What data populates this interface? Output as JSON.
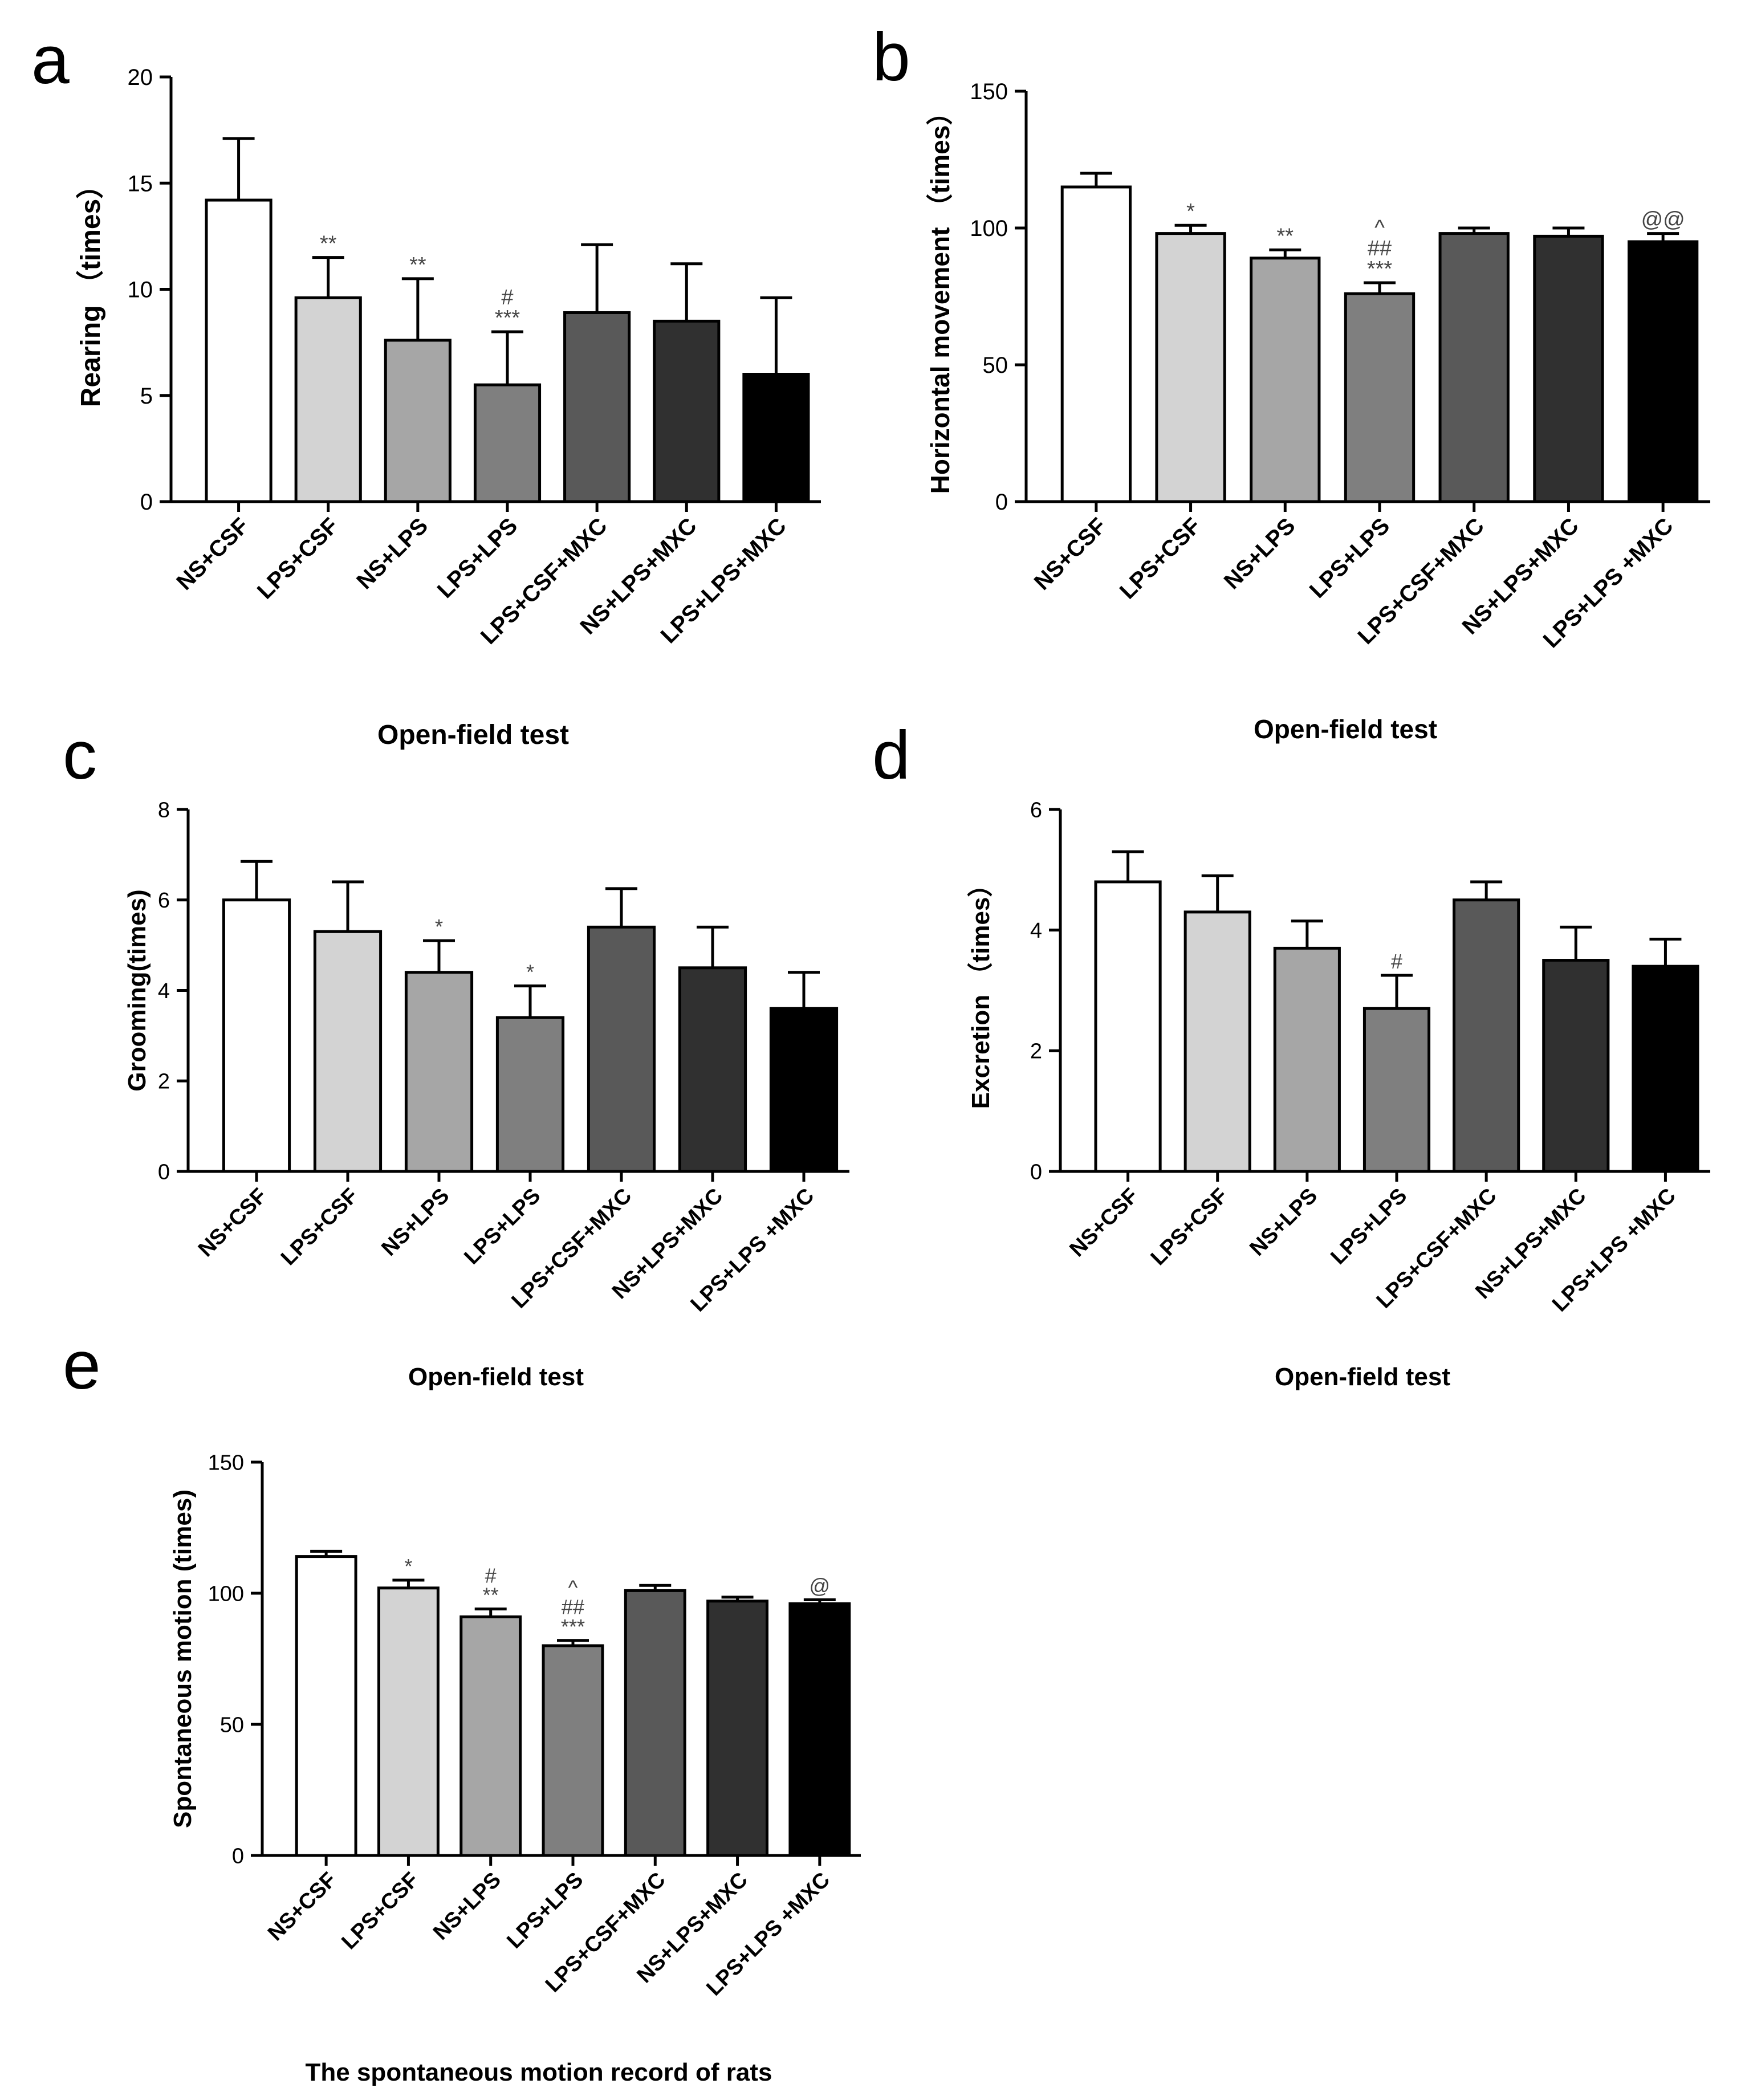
{
  "figure": {
    "bar_colors": [
      "#ffffff",
      "#d3d3d3",
      "#a6a6a6",
      "#7f7f7f",
      "#595959",
      "#303030",
      "#000000"
    ],
    "axis_color": "#000000",
    "annotation_color": "#444444"
  },
  "chart_data": [
    {
      "id": "a",
      "panel_label": "a",
      "type": "bar",
      "ylabel": "Rearing （times）",
      "xlabel": "Open-field test",
      "ylim": [
        0,
        20
      ],
      "yticks": [
        "0",
        "5",
        "10",
        "15",
        "20"
      ],
      "categories": [
        "NS+CSF",
        "LPS+CSF",
        "NS+LPS",
        "LPS+LPS",
        "LPS+CSF+MXC",
        "NS+LPS+MXC",
        "LPS+LPS+MXC"
      ],
      "values": [
        14.2,
        9.6,
        7.6,
        5.5,
        8.9,
        8.5,
        6.0
      ],
      "errors": [
        2.9,
        1.9,
        2.9,
        2.5,
        3.2,
        2.7,
        3.6
      ],
      "annotations": [
        [],
        [
          "**"
        ],
        [
          "**"
        ],
        [
          "#",
          "***"
        ],
        [],
        [],
        []
      ]
    },
    {
      "id": "b",
      "panel_label": "b",
      "type": "bar",
      "ylabel": "Horizontal movement （times）",
      "xlabel": "Open-field test",
      "ylim": [
        0,
        150
      ],
      "yticks": [
        "0",
        "50",
        "100",
        "150"
      ],
      "categories": [
        "NS+CSF",
        "LPS+CSF",
        "NS+LPS",
        "LPS+LPS",
        "LPS+CSF+MXC",
        "NS+LPS+MXC",
        "LPS+LPS +MXC"
      ],
      "values": [
        115,
        98,
        89,
        76,
        98,
        97,
        95
      ],
      "errors": [
        5,
        3,
        3,
        4,
        2,
        3,
        3
      ],
      "annotations": [
        [],
        [
          "*"
        ],
        [
          "**"
        ],
        [
          "^",
          "##",
          "***"
        ],
        [],
        [],
        [
          "@@"
        ]
      ]
    },
    {
      "id": "c",
      "panel_label": "c",
      "type": "bar",
      "ylabel": "Grooming(times)",
      "xlabel": "Open-field test",
      "ylim": [
        0,
        8
      ],
      "yticks": [
        "0",
        "2",
        "4",
        "6",
        "8"
      ],
      "categories": [
        "NS+CSF",
        "LPS+CSF",
        "NS+LPS",
        "LPS+LPS",
        "LPS+CSF+MXC",
        "NS+LPS+MXC",
        "LPS+LPS +MXC"
      ],
      "values": [
        6.0,
        5.3,
        4.4,
        3.4,
        5.4,
        4.5,
        3.6
      ],
      "errors": [
        0.85,
        1.1,
        0.7,
        0.7,
        0.85,
        0.9,
        0.8
      ],
      "annotations": [
        [],
        [],
        [
          "*"
        ],
        [
          "*"
        ],
        [],
        [],
        []
      ]
    },
    {
      "id": "d",
      "panel_label": "d",
      "type": "bar",
      "ylabel": "Excretion （times）",
      "xlabel": "Open-field test",
      "ylim": [
        0,
        6
      ],
      "yticks": [
        "0",
        "2",
        "4",
        "6"
      ],
      "categories": [
        "NS+CSF",
        "LPS+CSF",
        "NS+LPS",
        "LPS+LPS",
        "LPS+CSF+MXC",
        "NS+LPS+MXC",
        "LPS+LPS +MXC"
      ],
      "values": [
        4.8,
        4.3,
        3.7,
        2.7,
        4.5,
        3.5,
        3.4
      ],
      "errors": [
        0.5,
        0.6,
        0.45,
        0.55,
        0.3,
        0.55,
        0.45
      ],
      "annotations": [
        [],
        [],
        [],
        [
          "#"
        ],
        [],
        [],
        []
      ]
    },
    {
      "id": "e",
      "panel_label": "e",
      "type": "bar",
      "ylabel": "Spontaneous motion (times)",
      "xlabel": "The spontaneous motion record of rats",
      "ylim": [
        0,
        150
      ],
      "yticks": [
        "0",
        "50",
        "100",
        "150"
      ],
      "categories": [
        "NS+CSF",
        "LPS+CSF",
        "NS+LPS",
        "LPS+LPS",
        "LPS+CSF+MXC",
        "NS+LPS+MXC",
        "LPS+LPS +MXC"
      ],
      "values": [
        114,
        102,
        91,
        80,
        101,
        97,
        96
      ],
      "errors": [
        2,
        3,
        3,
        2,
        2,
        1.5,
        1.5
      ],
      "annotations": [
        [],
        [
          "*"
        ],
        [
          "#",
          "**"
        ],
        [
          "^",
          "##",
          "***"
        ],
        [],
        [],
        [
          "@"
        ]
      ]
    }
  ]
}
